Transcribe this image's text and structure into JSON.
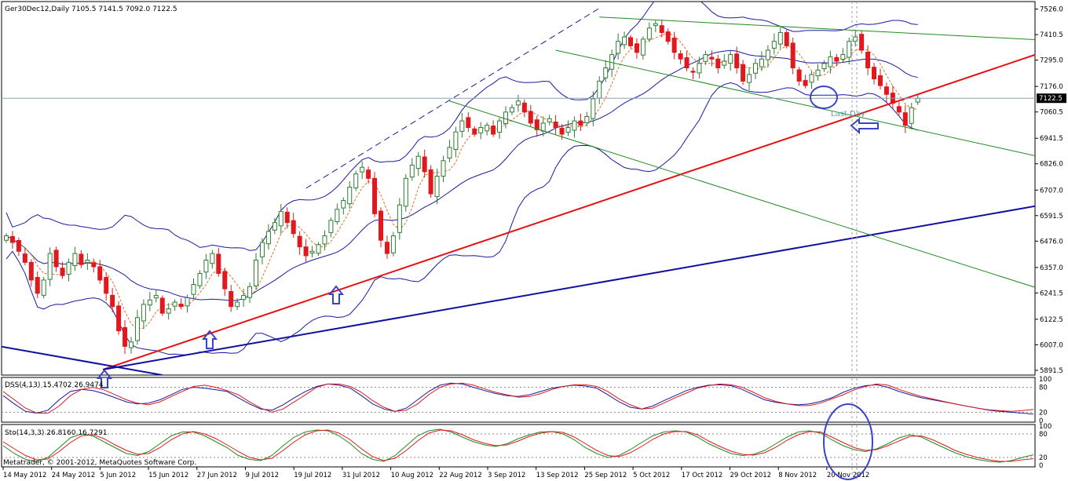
{
  "window": {
    "symbol_header": "Ger30Dec12,Daily  7105.5 7141.5 7092.0 7122.5",
    "copyright": "Metatrader, © 2001-2012, MetaQuotes Software Corp.",
    "annotation": "Last Day",
    "current_price_label": "7122.5"
  },
  "colors": {
    "bull_candle": "#2e7d32",
    "bear_candle": "#e0191e",
    "bollinger": "#1a1aa0",
    "ma_dashed": "#e07020",
    "red_trend": "#e81010",
    "green_trend": "#1f8a1f",
    "blue_trend": "#1010a0",
    "annotation_blue": "#3a44c8",
    "stoch_main": "#1f8a1f",
    "stoch_signal": "#e0191e",
    "dss_main": "#1a1aa0",
    "dss_signal": "#e0191e"
  },
  "chart_data": [
    {
      "type": "candlestick",
      "panel": "price",
      "title": "Ger30Dec12,Daily",
      "ohlc_last": {
        "open": 7105.5,
        "high": 7141.5,
        "low": 7092.0,
        "close": 7122.5
      },
      "y_ticks": [
        7526.0,
        7410.5,
        7295.0,
        7176.0,
        7060.5,
        6941.5,
        6826.0,
        6707.0,
        6591.5,
        6476.0,
        6357.0,
        6241.5,
        6122.5,
        6007.0,
        5891.5
      ],
      "ylim": [
        5870,
        7560
      ],
      "x_tick_labels": [
        "14 May 2012",
        "24 May 2012",
        "5 Jun 2012",
        "15 Jun 2012",
        "27 Jun 2012",
        "9 Jul 2012",
        "19 Jul 2012",
        "31 Jul 2012",
        "10 Aug 2012",
        "22 Aug 2012",
        "3 Sep 2012",
        "13 Sep 2012",
        "25 Sep 2012",
        "5 Oct 2012",
        "17 Oct 2012",
        "29 Oct 2012",
        "8 Nov 2012",
        "20 Nov 2012"
      ],
      "close_path": [
        6500,
        6470,
        6430,
        6380,
        6300,
        6240,
        6300,
        6420,
        6360,
        6320,
        6380,
        6420,
        6370,
        6390,
        6360,
        6300,
        6240,
        6180,
        6070,
        6000,
        6020,
        6130,
        6190,
        6210,
        6230,
        6150,
        6170,
        6200,
        6180,
        6220,
        6280,
        6330,
        6390,
        6420,
        6330,
        6260,
        6180,
        6200,
        6230,
        6270,
        6390,
        6470,
        6520,
        6560,
        6610,
        6560,
        6510,
        6450,
        6410,
        6430,
        6460,
        6500,
        6570,
        6620,
        6660,
        6720,
        6780,
        6810,
        6760,
        6600,
        6480,
        6420,
        6500,
        6640,
        6760,
        6820,
        6860,
        6790,
        6690,
        6770,
        6840,
        6900,
        6970,
        7020,
        6990,
        6960,
        6990,
        7000,
        6960,
        7020,
        7060,
        7080,
        7110,
        7060,
        7010,
        6980,
        7010,
        7030,
        6990,
        6960,
        6990,
        7020,
        7000,
        7040,
        7120,
        7200,
        7260,
        7320,
        7380,
        7400,
        7360,
        7330,
        7390,
        7440,
        7460,
        7420,
        7380,
        7330,
        7300,
        7260,
        7240,
        7280,
        7320,
        7300,
        7260,
        7290,
        7320,
        7260,
        7200,
        7230,
        7280,
        7300,
        7340,
        7380,
        7420,
        7360,
        7260,
        7200,
        7180,
        7230,
        7250,
        7280,
        7310,
        7290,
        7320,
        7380,
        7400,
        7340,
        7260,
        7210,
        7180,
        7140,
        7100,
        7060,
        7000,
        7080,
        7122.5
      ]
    },
    {
      "type": "line",
      "panel": "oscillator",
      "title": "DSS(4,13) 15.4702 26.9474",
      "y_ticks": [
        100,
        80,
        20,
        0
      ],
      "ylim": [
        0,
        100
      ],
      "series": [
        {
          "name": "main",
          "values": [
            60,
            40,
            22,
            18,
            25,
            50,
            70,
            75,
            72,
            65,
            55,
            45,
            40,
            42,
            50,
            62,
            75,
            80,
            78,
            74,
            70,
            55,
            40,
            28,
            25,
            38,
            55,
            70,
            82,
            88,
            85,
            78,
            60,
            40,
            28,
            22,
            30,
            50,
            70,
            85,
            90,
            88,
            80,
            72,
            65,
            60,
            58,
            62,
            70,
            78,
            82,
            85,
            83,
            78,
            62,
            45,
            32,
            28,
            35,
            48,
            60,
            72,
            80,
            85,
            86,
            84,
            75,
            62,
            50,
            44,
            40,
            38,
            40,
            46,
            55,
            68,
            78,
            84,
            86,
            80,
            70,
            62,
            55,
            50,
            45,
            40,
            35,
            30,
            25,
            22,
            20,
            18,
            15.47
          ]
        },
        {
          "name": "signal",
          "values": [
            70,
            50,
            30,
            18,
            18,
            35,
            60,
            75,
            80,
            74,
            62,
            50,
            42,
            38,
            45,
            58,
            70,
            82,
            85,
            80,
            72,
            62,
            45,
            30,
            20,
            28,
            45,
            62,
            80,
            88,
            88,
            82,
            68,
            48,
            32,
            22,
            25,
            40,
            62,
            80,
            88,
            90,
            85,
            76,
            68,
            62,
            56,
            58,
            65,
            75,
            82,
            86,
            86,
            82,
            70,
            52,
            38,
            28,
            30,
            42,
            55,
            66,
            78,
            84,
            88,
            86,
            80,
            68,
            55,
            46,
            40,
            36,
            36,
            42,
            52,
            62,
            74,
            82,
            88,
            85,
            75,
            66,
            58,
            52,
            46,
            40,
            35,
            30,
            26,
            24,
            22,
            24,
            26.95
          ]
        }
      ]
    },
    {
      "type": "line",
      "panel": "oscillator",
      "title": "Sto(14,3,3) 26.8160 16.7291",
      "y_ticks": [
        100,
        80,
        20,
        0
      ],
      "ylim": [
        0,
        100
      ],
      "series": [
        {
          "name": "main",
          "values": [
            50,
            30,
            15,
            10,
            20,
            45,
            70,
            80,
            75,
            60,
            45,
            30,
            25,
            35,
            55,
            75,
            85,
            85,
            75,
            60,
            45,
            25,
            15,
            12,
            25,
            50,
            72,
            85,
            90,
            88,
            75,
            55,
            30,
            15,
            10,
            25,
            50,
            75,
            88,
            92,
            85,
            72,
            60,
            52,
            48,
            55,
            68,
            78,
            85,
            86,
            80,
            65,
            45,
            30,
            20,
            25,
            40,
            58,
            75,
            85,
            88,
            85,
            72,
            55,
            42,
            30,
            25,
            28,
            38,
            55,
            72,
            85,
            88,
            82,
            65,
            50,
            40,
            35,
            42,
            55,
            70,
            78,
            72,
            58,
            45,
            32,
            22,
            15,
            10,
            8,
            12,
            20,
            26.82
          ]
        },
        {
          "name": "signal",
          "values": [
            60,
            42,
            25,
            14,
            16,
            35,
            58,
            75,
            78,
            68,
            52,
            38,
            28,
            30,
            45,
            65,
            80,
            86,
            80,
            68,
            52,
            35,
            20,
            14,
            18,
            38,
            60,
            78,
            88,
            90,
            82,
            65,
            42,
            22,
            12,
            18,
            38,
            62,
            82,
            90,
            88,
            78,
            65,
            56,
            50,
            52,
            62,
            74,
            82,
            86,
            84,
            72,
            55,
            38,
            25,
            22,
            32,
            48,
            66,
            80,
            86,
            86,
            78,
            62,
            48,
            36,
            28,
            26,
            32,
            46,
            64,
            78,
            86,
            85,
            72,
            58,
            45,
            38,
            40,
            50,
            62,
            74,
            75,
            65,
            52,
            38,
            28,
            20,
            14,
            10,
            10,
            14,
            16.73
          ]
        }
      ]
    }
  ]
}
